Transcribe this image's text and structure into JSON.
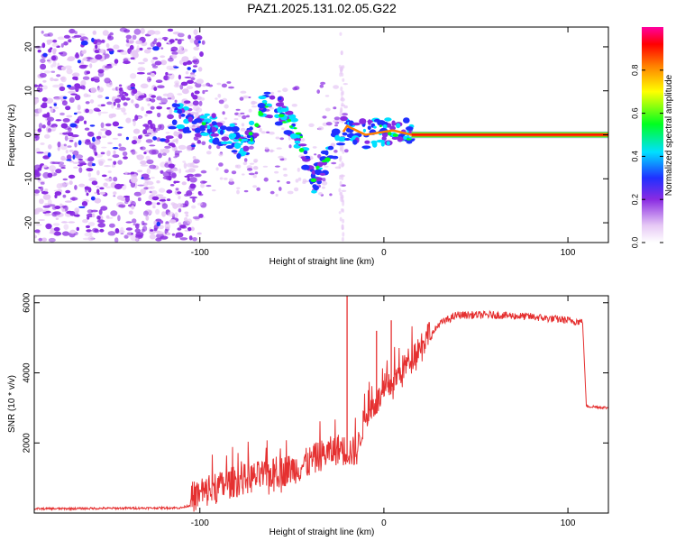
{
  "title": "PAZ1.2025.131.02.05.G22",
  "chart_data": [
    {
      "type": "heatmap",
      "xlabel": "Height of straight line (km)",
      "ylabel": "Frequency (Hz)",
      "xlim": [
        -190,
        122
      ],
      "ylim": [
        -24.5,
        24.5
      ],
      "x_ticks": [
        -100,
        0,
        100
      ],
      "x_tick_labels": [
        "-100",
        "0",
        "100"
      ],
      "y_ticks": [
        -20,
        -10,
        0,
        10,
        20
      ],
      "y_tick_labels": [
        "-20",
        "-10",
        "0",
        "10",
        "20"
      ],
      "colorbar": {
        "label": "Normalized spectral amplitude",
        "range": [
          0,
          1
        ],
        "ticks": [
          0.0,
          0.2,
          0.4,
          0.6,
          0.8
        ],
        "tick_labels": [
          "0.0",
          "0.2",
          "0.4",
          "0.6",
          "0.8"
        ],
        "colors": [
          "#ffffff",
          "#e6c8f5",
          "#8a2be2",
          "#2030ff",
          "#00e0ff",
          "#00ff20",
          "#ffff00",
          "#ff8000",
          "#ff0000",
          "#ff00a0"
        ]
      },
      "ridge": [
        {
          "x": -165,
          "f": 6
        },
        {
          "x": -110,
          "f": 4
        },
        {
          "x": -95,
          "f": 2
        },
        {
          "x": -85,
          "f": 0
        },
        {
          "x": -75,
          "f": -3
        },
        {
          "x": -65,
          "f": 7
        },
        {
          "x": -55,
          "f": 5
        },
        {
          "x": -45,
          "f": -2
        },
        {
          "x": -38,
          "f": -10
        },
        {
          "x": -20,
          "f": 2
        },
        {
          "x": -10,
          "f": 0
        },
        {
          "x": 5,
          "f": 1
        },
        {
          "x": 15,
          "f": 0
        },
        {
          "x": 122,
          "f": 0
        }
      ]
    },
    {
      "type": "line",
      "xlabel": "Height of straight line (km)",
      "ylabel": "SNR (10 * v/v)",
      "xlim": [
        -190,
        122
      ],
      "ylim": [
        0,
        6200
      ],
      "x_ticks": [
        -100,
        0,
        100
      ],
      "x_tick_labels": [
        "-100",
        "0",
        "100"
      ],
      "y_ticks": [
        2000,
        4000,
        6000
      ],
      "y_tick_labels": [
        "2000",
        "4000",
        "6000"
      ],
      "color": "#e53030",
      "trend": [
        {
          "x": -190,
          "y": 120
        },
        {
          "x": -110,
          "y": 150
        },
        {
          "x": -100,
          "y": 300
        },
        {
          "x": -90,
          "y": 500
        },
        {
          "x": -80,
          "y": 700
        },
        {
          "x": -60,
          "y": 900
        },
        {
          "x": -45,
          "y": 1100
        },
        {
          "x": -35,
          "y": 1400
        },
        {
          "x": -25,
          "y": 1600
        },
        {
          "x": -15,
          "y": 1500
        },
        {
          "x": -10,
          "y": 2600
        },
        {
          "x": 0,
          "y": 3200
        },
        {
          "x": 10,
          "y": 3900
        },
        {
          "x": 20,
          "y": 4600
        },
        {
          "x": 30,
          "y": 5400
        },
        {
          "x": 40,
          "y": 5650
        },
        {
          "x": 60,
          "y": 5650
        },
        {
          "x": 80,
          "y": 5600
        },
        {
          "x": 100,
          "y": 5500
        },
        {
          "x": 108,
          "y": 5450
        },
        {
          "x": 110,
          "y": 3050
        },
        {
          "x": 122,
          "y": 3000
        }
      ],
      "spikes": [
        {
          "x": -20,
          "y": 6200
        },
        {
          "x": -4,
          "y": 5200
        },
        {
          "x": 4,
          "y": 5500
        }
      ]
    }
  ]
}
